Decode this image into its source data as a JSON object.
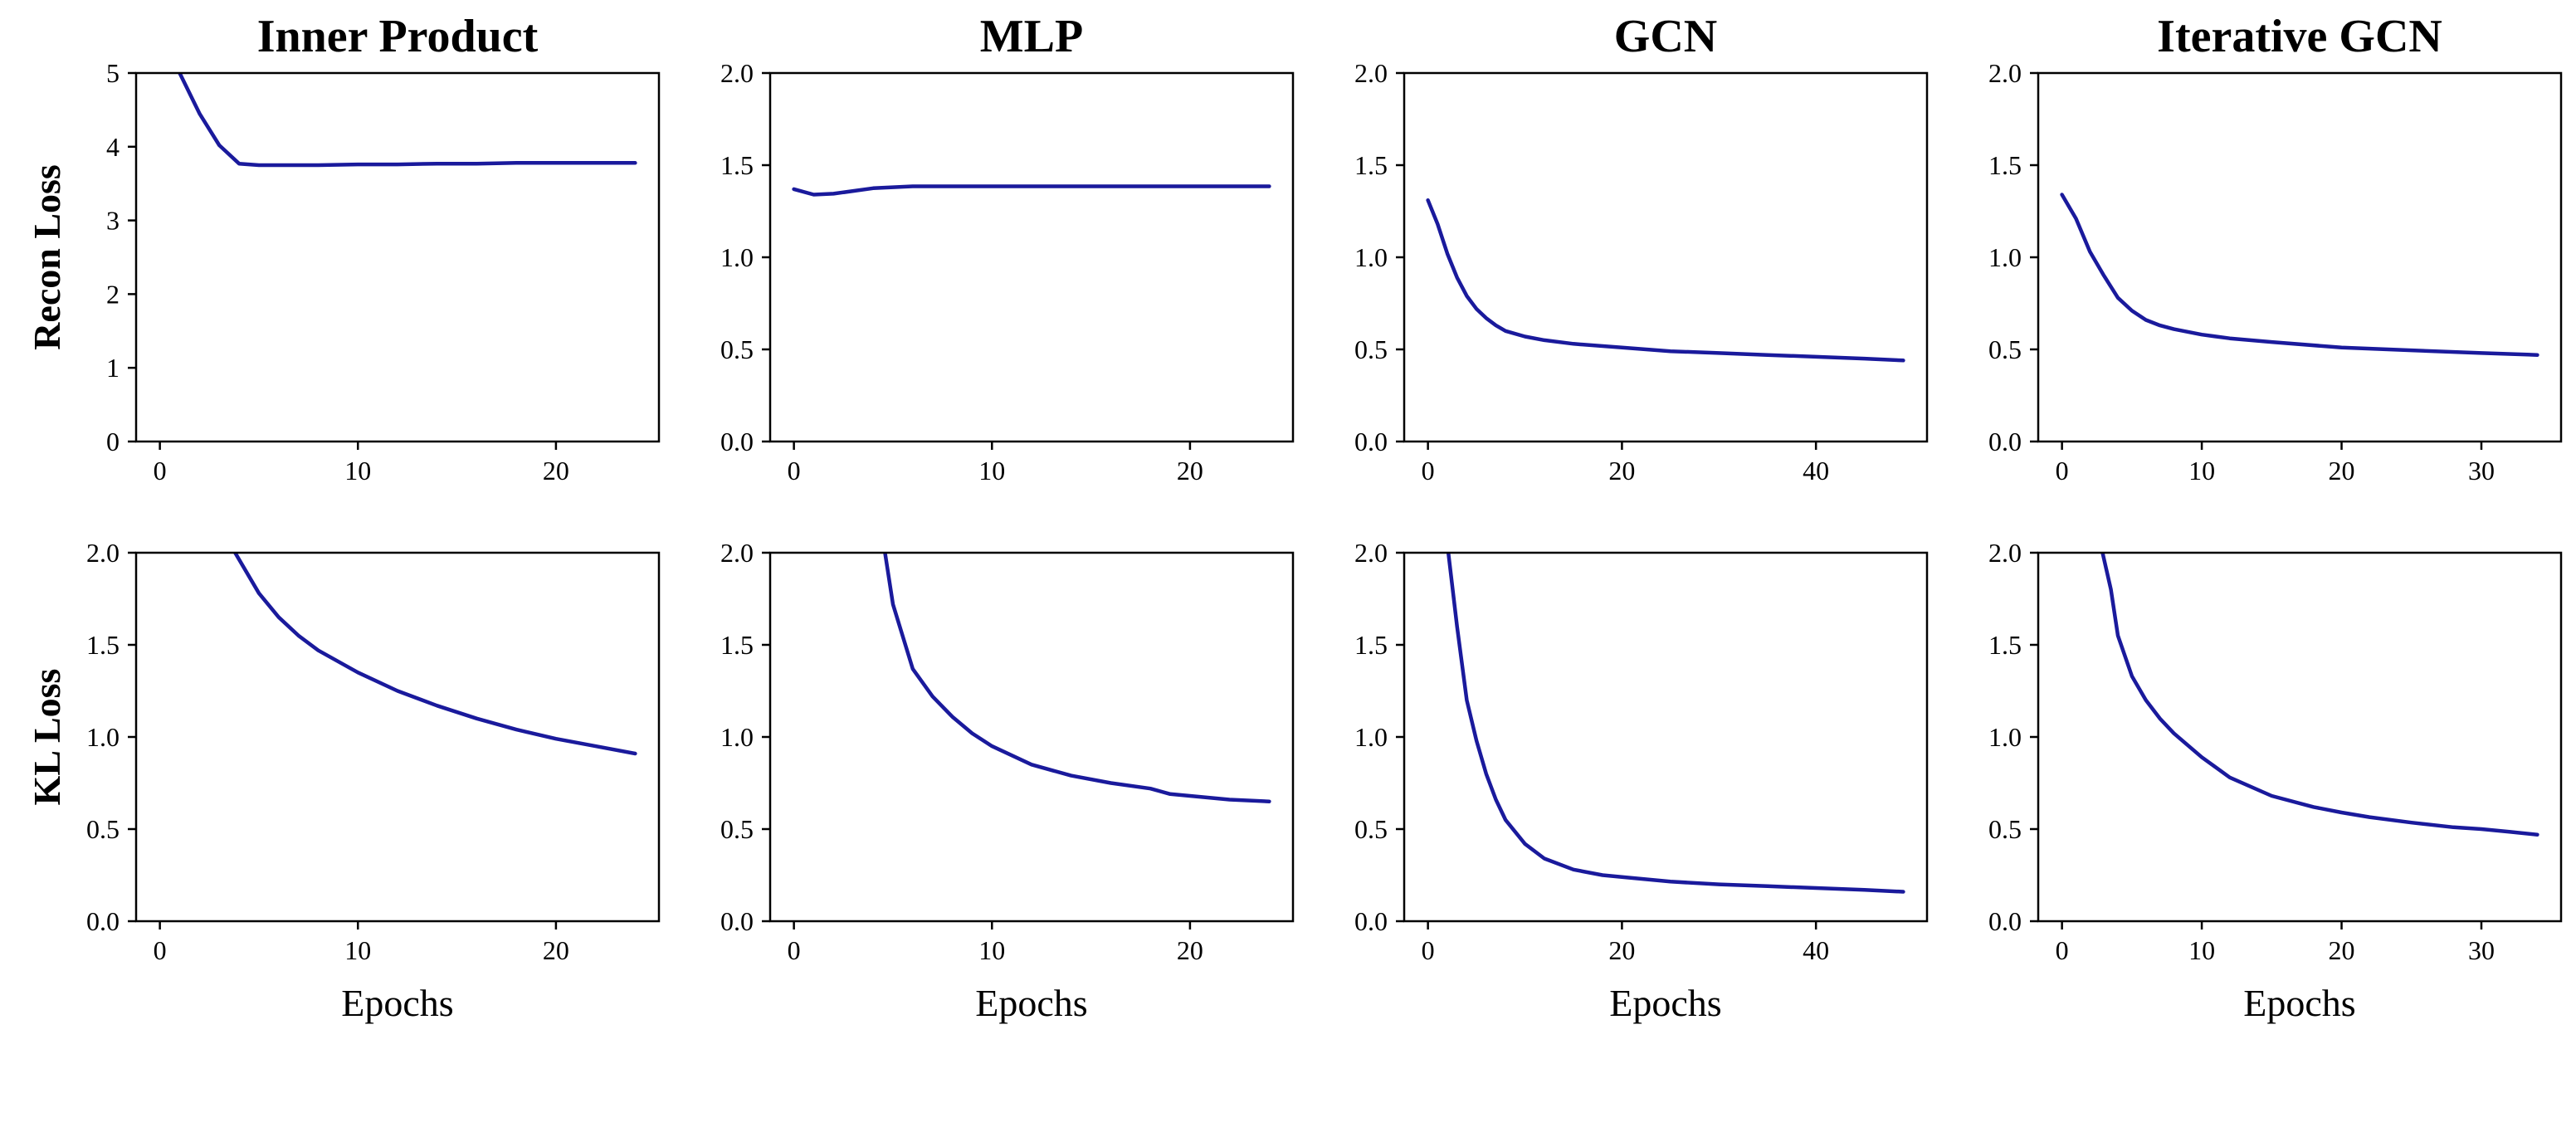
{
  "chart_data": [
    {
      "type": "line",
      "row": 0,
      "col": 0,
      "title": "Inner Product",
      "ylabel": "Recon Loss",
      "xlabel": "",
      "xlim": [
        -1.2,
        25.2
      ],
      "ylim": [
        0,
        5
      ],
      "xticks": [
        0,
        10,
        20
      ],
      "yticks": [
        0,
        1,
        2,
        3,
        4,
        5
      ],
      "ytick_labels": [
        "0",
        "1",
        "2",
        "3",
        "4",
        "5"
      ],
      "grid": false,
      "series": [
        {
          "x": [
            1,
            2,
            3,
            4,
            5,
            6,
            8,
            10,
            12,
            14,
            16,
            18,
            20,
            22,
            24
          ],
          "y": [
            5.0,
            4.45,
            4.02,
            3.77,
            3.75,
            3.75,
            3.75,
            3.76,
            3.76,
            3.77,
            3.77,
            3.78,
            3.78,
            3.78,
            3.78
          ],
          "color": "#1a1a9c"
        }
      ]
    },
    {
      "type": "line",
      "row": 0,
      "col": 1,
      "title": "MLP",
      "ylabel": "",
      "xlabel": "",
      "xlim": [
        -1.2,
        25.2
      ],
      "ylim": [
        0,
        2
      ],
      "xticks": [
        0,
        10,
        20
      ],
      "yticks": [
        0,
        0.5,
        1,
        1.5,
        2
      ],
      "ytick_labels": [
        "0.0",
        "0.5",
        "1.0",
        "1.5",
        "2.0"
      ],
      "grid": false,
      "series": [
        {
          "x": [
            0,
            1,
            2,
            3,
            4,
            5,
            6,
            8,
            10,
            12,
            14,
            16,
            18,
            20,
            22,
            24
          ],
          "y": [
            1.37,
            1.34,
            1.345,
            1.36,
            1.375,
            1.38,
            1.385,
            1.385,
            1.385,
            1.385,
            1.385,
            1.385,
            1.385,
            1.385,
            1.385,
            1.385
          ],
          "color": "#1a1a9c"
        }
      ]
    },
    {
      "type": "line",
      "row": 0,
      "col": 2,
      "title": "GCN",
      "ylabel": "",
      "xlabel": "",
      "xlim": [
        -2.45,
        51.45
      ],
      "ylim": [
        0,
        2
      ],
      "xticks": [
        0,
        20,
        40
      ],
      "yticks": [
        0,
        0.5,
        1,
        1.5,
        2
      ],
      "ytick_labels": [
        "0.0",
        "0.5",
        "1.0",
        "1.5",
        "2.0"
      ],
      "grid": false,
      "series": [
        {
          "x": [
            0,
            1,
            2,
            3,
            4,
            5,
            6,
            7,
            8,
            10,
            12,
            15,
            20,
            25,
            30,
            35,
            40,
            45,
            49
          ],
          "y": [
            1.31,
            1.18,
            1.02,
            0.89,
            0.79,
            0.72,
            0.67,
            0.63,
            0.6,
            0.57,
            0.55,
            0.53,
            0.51,
            0.49,
            0.48,
            0.47,
            0.46,
            0.45,
            0.44
          ],
          "color": "#1a1a9c"
        }
      ]
    },
    {
      "type": "line",
      "row": 0,
      "col": 3,
      "title": "Iterative GCN",
      "ylabel": "",
      "xlabel": "",
      "xlim": [
        -1.7,
        35.7
      ],
      "ylim": [
        0,
        2
      ],
      "xticks": [
        0,
        10,
        20,
        30
      ],
      "yticks": [
        0,
        0.5,
        1,
        1.5,
        2
      ],
      "ytick_labels": [
        "0.0",
        "0.5",
        "1.0",
        "1.5",
        "2.0"
      ],
      "grid": false,
      "series": [
        {
          "x": [
            0,
            1,
            2,
            3,
            4,
            5,
            6,
            7,
            8,
            10,
            12,
            15,
            20,
            25,
            30,
            34
          ],
          "y": [
            1.34,
            1.21,
            1.03,
            0.9,
            0.78,
            0.71,
            0.66,
            0.63,
            0.61,
            0.58,
            0.56,
            0.54,
            0.51,
            0.495,
            0.48,
            0.47
          ],
          "color": "#1a1a9c"
        }
      ]
    },
    {
      "type": "line",
      "row": 1,
      "col": 0,
      "title": "",
      "ylabel": "KL Loss",
      "xlabel": "Epochs",
      "xlim": [
        -1.2,
        25.2
      ],
      "ylim": [
        0,
        2
      ],
      "xticks": [
        0,
        10,
        20
      ],
      "yticks": [
        0,
        0.5,
        1,
        1.5,
        2
      ],
      "ytick_labels": [
        "0.0",
        "0.5",
        "1.0",
        "1.5",
        "2.0"
      ],
      "grid": false,
      "series": [
        {
          "x": [
            3.8,
            5,
            6,
            7,
            8,
            10,
            12,
            14,
            16,
            18,
            20,
            22,
            24
          ],
          "y": [
            2.0,
            1.78,
            1.65,
            1.55,
            1.47,
            1.35,
            1.25,
            1.17,
            1.1,
            1.04,
            0.99,
            0.95,
            0.91
          ],
          "color": "#1a1a9c"
        }
      ]
    },
    {
      "type": "line",
      "row": 1,
      "col": 1,
      "title": "",
      "ylabel": "",
      "xlabel": "Epochs",
      "xlim": [
        -1.2,
        25.2
      ],
      "ylim": [
        0,
        2
      ],
      "xticks": [
        0,
        10,
        20
      ],
      "yticks": [
        0,
        0.5,
        1,
        1.5,
        2
      ],
      "ytick_labels": [
        "0.0",
        "0.5",
        "1.0",
        "1.5",
        "2.0"
      ],
      "grid": false,
      "series": [
        {
          "x": [
            4.6,
            5,
            6,
            7,
            8,
            9,
            10,
            12,
            14,
            16,
            18,
            19,
            20,
            22,
            24
          ],
          "y": [
            2.0,
            1.72,
            1.37,
            1.22,
            1.11,
            1.02,
            0.95,
            0.85,
            0.79,
            0.75,
            0.72,
            0.69,
            0.68,
            0.66,
            0.65
          ],
          "color": "#1a1a9c"
        }
      ]
    },
    {
      "type": "line",
      "row": 1,
      "col": 2,
      "title": "",
      "ylabel": "",
      "xlabel": "Epochs",
      "xlim": [
        -2.45,
        51.45
      ],
      "ylim": [
        0,
        2
      ],
      "xticks": [
        0,
        20,
        40
      ],
      "yticks": [
        0,
        0.5,
        1,
        1.5,
        2
      ],
      "ytick_labels": [
        "0.0",
        "0.5",
        "1.0",
        "1.5",
        "2.0"
      ],
      "grid": false,
      "series": [
        {
          "x": [
            2.1,
            3,
            4,
            5,
            6,
            7,
            8,
            10,
            12,
            15,
            18,
            20,
            25,
            30,
            35,
            40,
            45,
            49
          ],
          "y": [
            2.0,
            1.6,
            1.2,
            0.98,
            0.8,
            0.66,
            0.55,
            0.42,
            0.34,
            0.28,
            0.25,
            0.24,
            0.215,
            0.2,
            0.19,
            0.18,
            0.17,
            0.16
          ],
          "color": "#1a1a9c"
        }
      ]
    },
    {
      "type": "line",
      "row": 1,
      "col": 3,
      "title": "",
      "ylabel": "",
      "xlabel": "Epochs",
      "xlim": [
        -1.7,
        35.7
      ],
      "ylim": [
        0,
        2
      ],
      "xticks": [
        0,
        10,
        20,
        30
      ],
      "yticks": [
        0,
        0.5,
        1,
        1.5,
        2
      ],
      "ytick_labels": [
        "0.0",
        "0.5",
        "1.0",
        "1.5",
        "2.0"
      ],
      "grid": false,
      "series": [
        {
          "x": [
            2.9,
            3.5,
            4,
            5,
            6,
            7,
            8,
            10,
            12,
            15,
            18,
            20,
            22,
            25,
            28,
            30,
            32,
            34
          ],
          "y": [
            2.0,
            1.8,
            1.55,
            1.33,
            1.2,
            1.1,
            1.02,
            0.89,
            0.78,
            0.68,
            0.62,
            0.59,
            0.565,
            0.535,
            0.51,
            0.5,
            0.485,
            0.47
          ],
          "color": "#1a1a9c"
        }
      ]
    }
  ]
}
